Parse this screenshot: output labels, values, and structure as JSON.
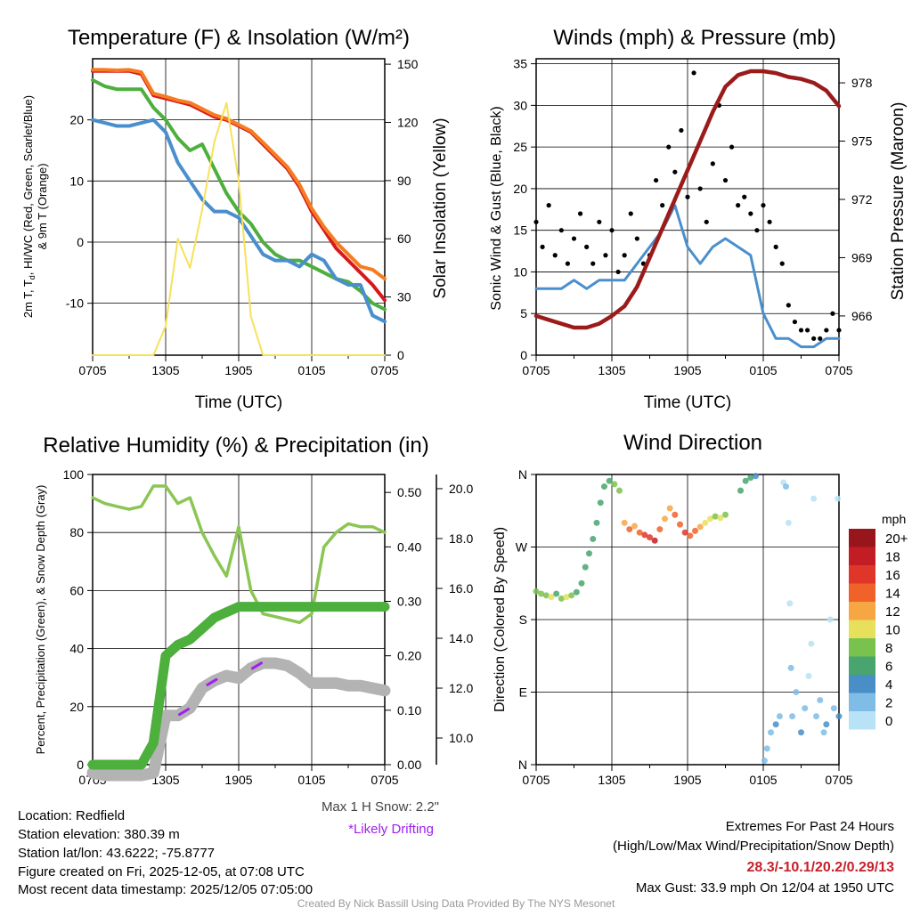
{
  "colors": {
    "temp": "#d7191c",
    "temp9m": "#f57c20",
    "hiwc": "#4daf3c",
    "dewpt": "#4a8fcd",
    "solar": "#f7e15a",
    "wind": "#4a8fcd",
    "gust": "#000000",
    "pressure": "#9b1b1b",
    "rh": "#8bc653",
    "precip": "#4daf3c",
    "snow": "#b3b3b3",
    "drift": "#a020f0",
    "extremes": "#c8202a"
  },
  "time_ticks": [
    "0705",
    "1305",
    "1905",
    "0105",
    "0705"
  ],
  "info": {
    "location": "Location: Redfield",
    "elevation": "Station elevation: 380.39 m",
    "latlon": "Station lat/lon: 43.6222; -75.8777",
    "created": "Figure created on Fri, 2025-12-05, at 07:08 UTC",
    "recent": "Most recent data timestamp: 2025/12/05 07:05:00",
    "max_snow": "Max 1 H Snow: 2.2\"",
    "drifting": "*Likely Drifting",
    "extremes_title": "Extremes For Past 24 Hours",
    "extremes_sub": "(High/Low/Max Wind/Precipitation/Snow Depth)",
    "extremes_values": "28.3/-10.1/20.2/0.29/13",
    "max_gust": "Max Gust: 33.9 mph On 12/04 at 1950 UTC",
    "credit": "Created By Nick Bassill Using Data Provided By The NYS Mesonet"
  },
  "chart_data": [
    {
      "type": "line",
      "title": "Temperature (F) & Insolation (W/m²)",
      "xlabel": "Time (UTC)",
      "ylabel_a": "2m T, T",
      "ylabel_sub": "d",
      "ylabel_b": ", HI/WC (Red, Green, Scarlet/Blue)",
      "ylabel_line2": "& 9m T (Orange)",
      "ylabel_right": "Solar Insolation (Yellow)",
      "ylim": [
        -18.5,
        30
      ],
      "yticks": [
        20,
        10,
        0,
        -10
      ],
      "ytick_labels": [
        "20",
        "10",
        "0",
        "-10"
      ],
      "ylim_right": [
        0,
        152.8
      ],
      "yticks_right": [
        150,
        120,
        90,
        60,
        30,
        0
      ],
      "ytick_labels_right": [
        "150",
        "120",
        "90",
        "60",
        "30",
        "0"
      ],
      "x_hours": [
        0,
        1,
        2,
        3,
        4,
        5,
        6,
        7,
        8,
        9,
        10,
        11,
        12,
        13,
        14,
        15,
        16,
        17,
        18,
        19,
        20,
        21,
        22,
        23,
        24
      ],
      "series": [
        {
          "name": "2m T",
          "color_key": "temp",
          "values": [
            28,
            28,
            28,
            28,
            27.5,
            24,
            23.5,
            23,
            22.5,
            21.5,
            20.5,
            20,
            19,
            18,
            16,
            14,
            12,
            9,
            5,
            2,
            -1,
            -3,
            -5,
            -7,
            -9.5
          ]
        },
        {
          "name": "9m T",
          "color_key": "temp9m",
          "values": [
            28.2,
            28.2,
            28.1,
            28.2,
            27.8,
            24.3,
            23.8,
            23.2,
            22.8,
            21.8,
            20.8,
            20.2,
            19.2,
            18.2,
            16.3,
            14.3,
            12.3,
            9.4,
            5.5,
            2.5,
            0,
            -2,
            -4,
            -4.5,
            -6
          ]
        },
        {
          "name": "HI/WC",
          "color_key": "hiwc",
          "values": [
            26.5,
            25.5,
            25,
            25,
            25,
            22,
            20,
            17,
            15,
            16,
            12,
            8,
            5,
            3,
            0,
            -2,
            -3,
            -3,
            -4,
            -5,
            -6,
            -6.5,
            -8,
            -10,
            -11
          ]
        },
        {
          "name": "Td",
          "color_key": "dewpt",
          "values": [
            20,
            19.5,
            19,
            19,
            19.5,
            20,
            18,
            13,
            10,
            7,
            5,
            5,
            4,
            1,
            -2,
            -3,
            -3,
            -4,
            -2,
            -3,
            -6,
            -7,
            -7,
            -12,
            -13
          ]
        },
        {
          "name": "Solar",
          "color_key": "solar",
          "axis": "right",
          "values": [
            0,
            0,
            0,
            0,
            0,
            0,
            15,
            60,
            45,
            75,
            110,
            130,
            90,
            20,
            0,
            0,
            0,
            0,
            0,
            0,
            0,
            0,
            0,
            0,
            0
          ]
        }
      ]
    },
    {
      "type": "line",
      "title": "Winds (mph) & Pressure (mb)",
      "xlabel": "Time (UTC)",
      "ylabel": "Sonic Wind & Gust (Blue, Black)",
      "ylabel_right": "Station Pressure (Maroon)",
      "ylim": [
        0,
        35.6
      ],
      "yticks": [
        35,
        30,
        25,
        20,
        15,
        10,
        5,
        0
      ],
      "ytick_labels": [
        "35",
        "30",
        "25",
        "20",
        "15",
        "10",
        "5",
        "0"
      ],
      "ylim_right": [
        963.98,
        979.24
      ],
      "yticks_right": [
        978,
        975,
        972,
        969,
        966
      ],
      "ytick_labels_right": [
        "978",
        "975",
        "972",
        "969",
        "966"
      ],
      "x_hours": [
        0,
        1,
        2,
        3,
        4,
        5,
        6,
        7,
        8,
        9,
        10,
        11,
        12,
        13,
        14,
        15,
        16,
        17,
        18,
        19,
        20,
        21,
        22,
        23,
        24
      ],
      "wind": [
        8,
        8,
        8,
        9,
        8,
        9,
        9,
        9,
        11,
        13,
        15,
        18,
        13,
        11,
        13,
        14,
        13,
        12,
        5,
        2,
        2,
        1,
        1,
        2,
        2
      ],
      "pressure": [
        966.0,
        965.8,
        965.6,
        965.4,
        965.4,
        965.6,
        966.0,
        966.5,
        967.5,
        969,
        970.5,
        972,
        973.5,
        975,
        976.5,
        977.8,
        978.4,
        978.6,
        978.6,
        978.5,
        978.3,
        978.2,
        978.0,
        977.6,
        976.8
      ],
      "gust_step_hours": 0.5,
      "gust": [
        16,
        13,
        18,
        12,
        15,
        11,
        14,
        17,
        13,
        11,
        16,
        12,
        15,
        10,
        12,
        17,
        14,
        11,
        12,
        21,
        18,
        25,
        22,
        27,
        19,
        33.9,
        20,
        16,
        23,
        30,
        21,
        25,
        18,
        19,
        17,
        15,
        18,
        16,
        13,
        11,
        6,
        4,
        3,
        3,
        2,
        2,
        3,
        5,
        3
      ]
    },
    {
      "type": "line",
      "title": "Relative Humidity (%) & Precipitation (in)",
      "ylabel": "Percent, Precipitation (Green), & Snow Depth (Gray)",
      "ylim": [
        0,
        100
      ],
      "yticks": [
        100,
        80,
        60,
        40,
        20,
        0
      ],
      "ytick_labels": [
        "100",
        "80",
        "60",
        "40",
        "20",
        "0"
      ],
      "precip_lim": [
        0,
        0.533
      ],
      "precip_ticks": [
        0.5,
        0.4,
        0.3,
        0.2,
        0.1,
        0
      ],
      "precip_tick_labels": [
        "0.50",
        "0.40",
        "0.30",
        "0.20",
        "0.10",
        "0.00"
      ],
      "snow_lim": [
        8.93,
        20.57
      ],
      "snow_ticks": [
        20,
        18,
        16,
        14,
        12,
        10
      ],
      "snow_tick_labels": [
        "20.0",
        "18.0",
        "16.0",
        "14.0",
        "12.0",
        "10.0"
      ],
      "x_hours": [
        0,
        1,
        2,
        3,
        4,
        5,
        6,
        7,
        8,
        9,
        10,
        11,
        12,
        13,
        14,
        15,
        16,
        17,
        18,
        19,
        20,
        21,
        22,
        23,
        24
      ],
      "rh": [
        92,
        90,
        89,
        88,
        89,
        96,
        96,
        90,
        92,
        80,
        72,
        65,
        82,
        60,
        52,
        51,
        50,
        49,
        52,
        75,
        80,
        83,
        82,
        82,
        80
      ],
      "precip": [
        0,
        0,
        0,
        0,
        0,
        0.04,
        0.2,
        0.22,
        0.23,
        0.25,
        0.27,
        0.28,
        0.29,
        0.29,
        0.29,
        0.29,
        0.29,
        0.29,
        0.29,
        0.29,
        0.29,
        0.29,
        0.29,
        0.29,
        0.29
      ],
      "snow_depth": [
        8.6,
        8.5,
        8.5,
        8.5,
        8.5,
        8.6,
        10.9,
        10.9,
        11.2,
        12.0,
        12.3,
        12.5,
        12.4,
        12.8,
        13.0,
        13.0,
        12.9,
        12.6,
        12.2,
        12.2,
        12.2,
        12.1,
        12.1,
        12.0,
        11.9
      ],
      "drifting_hours": [
        7.5,
        9.8,
        13.5
      ]
    },
    {
      "type": "scatter",
      "title": "Wind Direction",
      "ylabel": "Direction (Colored By Speed)",
      "ylim": [
        0,
        360
      ],
      "yticks": [
        360,
        270,
        180,
        90,
        0
      ],
      "ytick_labels": [
        "N",
        "W",
        "S",
        "E",
        "N"
      ],
      "legend_title": "mph",
      "legend_labels": [
        "20+",
        "18",
        "16",
        "14",
        "12",
        "10",
        "8",
        "6",
        "4",
        "2",
        "0"
      ],
      "legend_colors": [
        "#98151b",
        "#c21d25",
        "#e0362a",
        "#f0622a",
        "#f7a644",
        "#e7e05a",
        "#7ac24e",
        "#48a56e",
        "#4a8ec7",
        "#7fbde6",
        "#b8e2f5"
      ],
      "points": [
        [
          0,
          215,
          8
        ],
        [
          0.4,
          212,
          9
        ],
        [
          0.8,
          210,
          8
        ],
        [
          1.2,
          208,
          10
        ],
        [
          1.6,
          212,
          7
        ],
        [
          2,
          206,
          9
        ],
        [
          2.4,
          208,
          10
        ],
        [
          2.8,
          210,
          8
        ],
        [
          3.2,
          214,
          7
        ],
        [
          3.6,
          225,
          6
        ],
        [
          3.9,
          245,
          7
        ],
        [
          4.2,
          262,
          7
        ],
        [
          4.5,
          280,
          6
        ],
        [
          4.8,
          300,
          6
        ],
        [
          5.1,
          325,
          7
        ],
        [
          5.4,
          345,
          6
        ],
        [
          5.8,
          352,
          6
        ],
        [
          6.2,
          348,
          8
        ],
        [
          6.6,
          340,
          9
        ],
        [
          7,
          300,
          12
        ],
        [
          7.4,
          292,
          14
        ],
        [
          7.8,
          296,
          13
        ],
        [
          8.2,
          288,
          15
        ],
        [
          8.6,
          285,
          16
        ],
        [
          9,
          282,
          17
        ],
        [
          9.4,
          278,
          18
        ],
        [
          9.8,
          292,
          14
        ],
        [
          10.2,
          305,
          13
        ],
        [
          10.6,
          318,
          12
        ],
        [
          11,
          310,
          14
        ],
        [
          11.4,
          298,
          15
        ],
        [
          11.8,
          288,
          16
        ],
        [
          12.2,
          284,
          15
        ],
        [
          12.6,
          290,
          14
        ],
        [
          13,
          295,
          12
        ],
        [
          13.4,
          300,
          11
        ],
        [
          13.8,
          305,
          10
        ],
        [
          14.2,
          308,
          9
        ],
        [
          14.6,
          306,
          10
        ],
        [
          15,
          310,
          9
        ],
        [
          16.2,
          340,
          7
        ],
        [
          16.6,
          352,
          6
        ],
        [
          17,
          356,
          6
        ],
        [
          17.4,
          358,
          5
        ],
        [
          18.1,
          5,
          3
        ],
        [
          18.3,
          20,
          2
        ],
        [
          18.6,
          40,
          3
        ],
        [
          19,
          50,
          4
        ],
        [
          19.3,
          60,
          2
        ],
        [
          19.6,
          350,
          1
        ],
        [
          19.8,
          345,
          2
        ],
        [
          20,
          300,
          1
        ],
        [
          20.1,
          200,
          1
        ],
        [
          20.2,
          120,
          2
        ],
        [
          20.3,
          60,
          2
        ],
        [
          20.6,
          90,
          3
        ],
        [
          21,
          40,
          4
        ],
        [
          21.3,
          70,
          2
        ],
        [
          21.6,
          110,
          1
        ],
        [
          21.8,
          150,
          1
        ],
        [
          22,
          330,
          1
        ],
        [
          22.2,
          60,
          3
        ],
        [
          22.5,
          80,
          2
        ],
        [
          22.8,
          40,
          3
        ],
        [
          23,
          50,
          4
        ],
        [
          23.3,
          180,
          1
        ],
        [
          23.6,
          70,
          3
        ],
        [
          23.9,
          330,
          1
        ],
        [
          24,
          60,
          4
        ]
      ]
    }
  ]
}
